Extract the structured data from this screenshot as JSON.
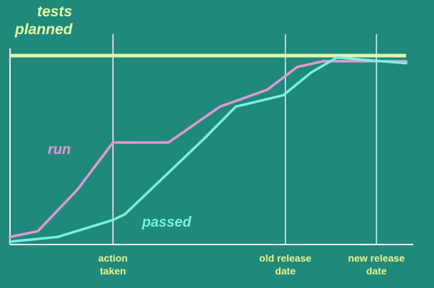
{
  "chart_data": {
    "type": "line",
    "title_lines": [
      "tests",
      "planned"
    ],
    "x_range": [
      0,
      100
    ],
    "y_range": [
      0,
      100
    ],
    "grid": false,
    "planned_level": 100,
    "series": [
      {
        "name": "run",
        "color": "#e596d8",
        "x": [
          0,
          7,
          17,
          26,
          40,
          53,
          65,
          72.5,
          79,
          81.5,
          100
        ],
        "y": [
          4,
          7,
          29,
          54,
          54,
          73,
          82,
          94,
          97,
          97,
          97
        ]
      },
      {
        "name": "passed",
        "color": "#77f1e3",
        "x": [
          0,
          12,
          26,
          29,
          49,
          57,
          69,
          76,
          82.5,
          88,
          100
        ],
        "y": [
          1.5,
          4,
          13,
          16,
          56,
          73,
          79,
          91,
          99,
          98,
          96
        ]
      }
    ],
    "markers": [
      {
        "x": 26,
        "label_lines": [
          "action",
          "taken"
        ]
      },
      {
        "x": 69.5,
        "label_lines": [
          "old release",
          "date"
        ]
      },
      {
        "x": 92.5,
        "label_lines": [
          "new release",
          "date"
        ]
      }
    ],
    "colors": {
      "background": "#1f8a7c",
      "planned_line": "#e0f6a6",
      "axes": "#ffffff",
      "text": "#eef58a",
      "title": "#e3f8a2"
    }
  }
}
